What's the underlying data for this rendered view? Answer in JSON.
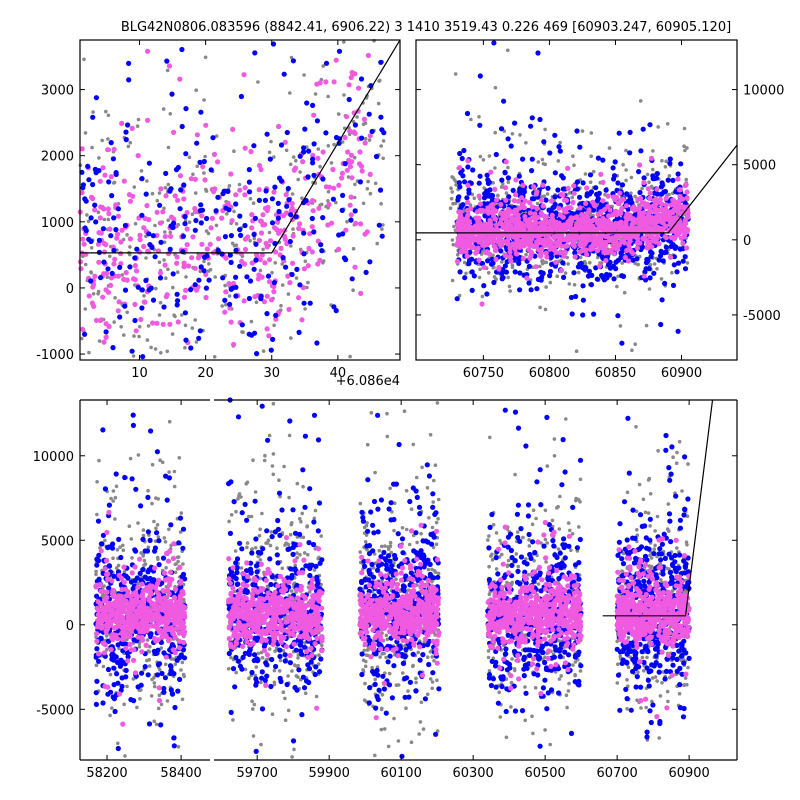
{
  "title": "BLG42N0806.083596 (8842.41, 6906.22)   3 1410 3519.43 0.226 469 [60903.247, 60905.120]",
  "colors": {
    "gray": "#888888",
    "blue": "#0000ff",
    "pink": "#f05ae0",
    "line": "#000000"
  },
  "chart_data": [
    {
      "id": "top-left",
      "type": "scatter",
      "xlim": [
        1.0,
        49.4
      ],
      "ylim": [
        -1090,
        3750
      ],
      "xticks": [
        10,
        20,
        30,
        40
      ],
      "yticks": [
        -1000,
        0,
        1000,
        2000,
        3000
      ],
      "y_axis_side": "left",
      "x_offset_label": "+6.086e4",
      "model_line": [
        [
          1.0,
          530
        ],
        [
          30,
          530
        ],
        [
          49.4,
          3750
        ]
      ],
      "series": [
        {
          "name": "gray",
          "n": 380,
          "x_range": [
            1,
            47
          ],
          "y_center": 500,
          "y_sigma": 900,
          "trend_after": 30,
          "trend_slope": 90
        },
        {
          "name": "pink",
          "n": 420,
          "x_range": [
            1,
            45
          ],
          "y_center": 500,
          "y_sigma": 650,
          "trend_after": 30,
          "trend_slope": 110
        },
        {
          "name": "blue",
          "n": 320,
          "x_range": [
            1,
            47
          ],
          "y_center": 500,
          "y_sigma": 1100,
          "trend_after": 30,
          "trend_slope": 100
        }
      ]
    },
    {
      "id": "top-right",
      "type": "scatter",
      "xlim": [
        60699,
        60942
      ],
      "ylim": [
        -8000,
        13300
      ],
      "xticks": [
        60750,
        60800,
        60850,
        60900
      ],
      "yticks": [
        -5000,
        0,
        5000,
        10000
      ],
      "y_axis_side": "right",
      "model_line": [
        [
          60699,
          460
        ],
        [
          60890,
          460
        ],
        [
          60942,
          6300
        ]
      ],
      "series": [
        {
          "name": "gray",
          "n": 700,
          "x_range": [
            60725,
            60905
          ],
          "y_center": 400,
          "y_sigma": 1800
        },
        {
          "name": "blue",
          "n": 900,
          "x_range": [
            60730,
            60905
          ],
          "y_center": 400,
          "y_sigma": 1600
        },
        {
          "name": "pink",
          "n": 1100,
          "x_range": [
            60730,
            60905
          ],
          "y_center": 450,
          "y_sigma": 700
        }
      ]
    },
    {
      "id": "bottom",
      "type": "scatter",
      "broken_x_axis": true,
      "segments": [
        {
          "xlim": [
            58127,
            58478
          ],
          "xticks": [
            58200,
            58400
          ]
        },
        {
          "xlim": [
            59580,
            61033
          ],
          "xticks": [
            59700,
            59900,
            60100,
            60300,
            60500,
            60700,
            60900
          ]
        }
      ],
      "ylim": [
        -8000,
        13300
      ],
      "yticks": [
        -5000,
        0,
        5000,
        10000
      ],
      "y_axis_side": "left",
      "model_line": [
        [
          60660,
          530
        ],
        [
          60890,
          530
        ],
        [
          60965,
          13300
        ]
      ],
      "seasons": [
        {
          "x_range": [
            58170,
            58410
          ],
          "segment": 0
        },
        {
          "x_range": [
            59620,
            59880
          ],
          "segment": 1
        },
        {
          "x_range": [
            59985,
            60205
          ],
          "segment": 1
        },
        {
          "x_range": [
            60340,
            60600
          ],
          "segment": 1
        },
        {
          "x_range": [
            60700,
            60900
          ],
          "segment": 1
        }
      ],
      "series": [
        {
          "name": "gray",
          "n_per_season": 380,
          "y_center": 400,
          "y_sigma": 2600
        },
        {
          "name": "blue",
          "n_per_season": 420,
          "y_center": 400,
          "y_sigma": 2200
        },
        {
          "name": "pink",
          "n_per_season": 520,
          "y_center": 450,
          "y_sigma": 800
        }
      ]
    }
  ]
}
